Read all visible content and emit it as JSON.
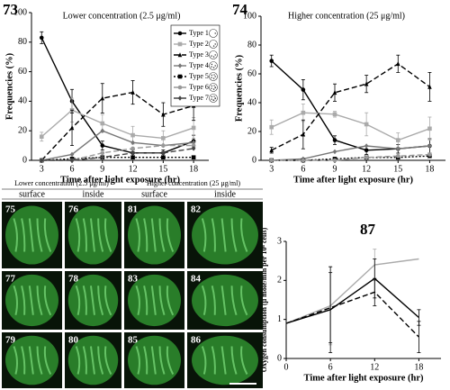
{
  "chart_data": [
    {
      "type": "line",
      "panel": "73",
      "title": "Lower concentration (2.5 μg/ml)",
      "ylabel": "Frequencies (%)",
      "xlabel": "Time after light exposure (hr)",
      "x": [
        3,
        6,
        9,
        12,
        15,
        18
      ],
      "xlim": [
        2,
        19.5
      ],
      "xticks": [
        3,
        6,
        9,
        12,
        15,
        18
      ],
      "ylim": [
        0,
        100
      ],
      "yticks": [
        0,
        20,
        40,
        60,
        80,
        100
      ],
      "legend": "upper right",
      "series": [
        {
          "name": "Type 1",
          "color": "#000000",
          "line_style": "solid",
          "marker": "circle",
          "values": [
            83,
            40,
            10,
            5,
            5,
            13
          ],
          "errors": [
            4,
            8,
            3,
            2,
            2,
            4
          ]
        },
        {
          "name": "Type 2",
          "color": "#aaaaaa",
          "line_style": "solid",
          "marker": "square",
          "values": [
            16,
            34,
            25,
            17,
            15,
            22
          ],
          "errors": [
            3,
            8,
            6,
            6,
            5,
            7
          ]
        },
        {
          "name": "Type 3",
          "color": "#000000",
          "line_style": "dashed",
          "marker": "triangle",
          "values": [
            0,
            22,
            42,
            46,
            31,
            37
          ],
          "errors": [
            1,
            12,
            10,
            8,
            8,
            10
          ]
        },
        {
          "name": "Type 4",
          "color": "#777777",
          "line_style": "solid",
          "marker": "diamond",
          "values": [
            0,
            4,
            20,
            12,
            10,
            12
          ]
        },
        {
          "name": "Type 5",
          "color": "#000000",
          "line_style": "dotted",
          "marker": "square",
          "values": [
            0,
            1,
            2,
            2,
            2,
            2
          ]
        },
        {
          "name": "Type 6",
          "color": "#999999",
          "line_style": "dashed",
          "marker": "circle",
          "values": [
            0,
            0,
            5,
            8,
            10,
            10
          ]
        },
        {
          "name": "Type 7",
          "color": "#444444",
          "line_style": "dashed",
          "marker": "diamond",
          "values": [
            0,
            0,
            2,
            5,
            5,
            8
          ]
        }
      ]
    },
    {
      "type": "line",
      "panel": "74",
      "title": "Higher concentration (25 μg/ml)",
      "ylabel": "Frequencies (%)",
      "xlabel": "Time after light exposure (hr)",
      "x": [
        3,
        6,
        9,
        12,
        15,
        18
      ],
      "xlim": [
        2,
        19.5
      ],
      "xticks": [
        3,
        6,
        9,
        12,
        15,
        18
      ],
      "ylim": [
        0,
        100
      ],
      "yticks": [
        0,
        20,
        40,
        60,
        80,
        100
      ],
      "series": [
        {
          "color": "#000000",
          "line_style": "solid",
          "marker": "circle",
          "values": [
            69,
            49,
            14,
            7,
            8,
            10
          ],
          "errors": [
            4,
            7,
            3,
            3,
            3,
            5
          ]
        },
        {
          "color": "#aaaaaa",
          "line_style": "solid",
          "marker": "square",
          "values": [
            23,
            33,
            32,
            25,
            14,
            22
          ],
          "errors": [
            5,
            6,
            2,
            8,
            5,
            8
          ]
        },
        {
          "color": "#000000",
          "line_style": "dashed",
          "marker": "triangle",
          "values": [
            7,
            18,
            47,
            53,
            67,
            51
          ],
          "errors": [
            2,
            10,
            6,
            6,
            6,
            10
          ]
        },
        {
          "color": "#777777",
          "line_style": "solid",
          "marker": "diamond",
          "values": [
            0,
            1,
            6,
            10,
            8,
            10
          ]
        },
        {
          "color": "#000000",
          "line_style": "dotted",
          "marker": "square",
          "values": [
            0,
            0,
            1,
            2,
            2,
            3
          ]
        },
        {
          "color": "#999999",
          "line_style": "dashed",
          "marker": "circle",
          "values": [
            0,
            0,
            0,
            2,
            3,
            4
          ]
        }
      ]
    },
    {
      "type": "line",
      "panel": "87",
      "ylabel": "Oxygen consumption (μ mole/min per 10⁶ cells)",
      "xlabel": "Time after light exposure (hr)",
      "x": [
        0,
        6,
        12,
        18
      ],
      "xlim": [
        0,
        21
      ],
      "xticks": [
        0,
        6,
        12,
        18
      ],
      "ylim": [
        0,
        3
      ],
      "yticks": [
        0,
        1,
        2,
        3
      ],
      "series": [
        {
          "color": "#aaaaaa",
          "line_style": "solid",
          "marker": "none",
          "values": [
            0.9,
            1.35,
            2.4,
            2.55
          ],
          "errors": [
            null,
            1.0,
            0.4,
            null
          ]
        },
        {
          "color": "#000000",
          "line_style": "solid",
          "marker": "none",
          "values": [
            0.9,
            1.25,
            2.05,
            1.05
          ],
          "errors": [
            null,
            1.1,
            0.5,
            0.2
          ]
        },
        {
          "color": "#000000",
          "line_style": "dashed",
          "marker": "none",
          "values": [
            0.9,
            1.3,
            1.7,
            0.55
          ],
          "errors": [
            null,
            0.9,
            0.35,
            0.4
          ]
        }
      ]
    }
  ],
  "panel_grid": {
    "groups": [
      "Lower concentration (2.5 μg/ml)",
      "Higher concentration (25 μg/ml)"
    ],
    "columns": [
      "surface",
      "inside",
      "surface",
      "inside"
    ],
    "panels": [
      [
        "75",
        "76",
        "81",
        "82"
      ],
      [
        "77",
        "78",
        "83",
        "84"
      ],
      [
        "79",
        "80",
        "85",
        "86"
      ]
    ]
  }
}
